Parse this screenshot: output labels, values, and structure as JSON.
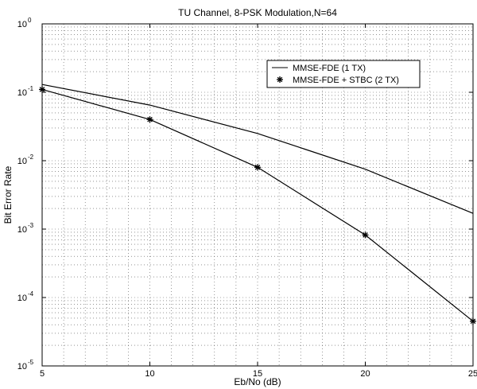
{
  "chart_data": {
    "type": "line",
    "title": "TU Channel, 8-PSK Modulation,N=64",
    "xlabel": "Eb/No (dB)",
    "ylabel": "Bit Error Rate",
    "xlim": [
      5,
      25
    ],
    "ylim": [
      1e-05,
      1
    ],
    "yscale": "log",
    "grid": true,
    "legend_position": "top-right",
    "x_ticks": [
      "5",
      "10",
      "15",
      "20",
      "25"
    ],
    "y_ticks": [
      {
        "base": "10",
        "exp": "0",
        "value": 1
      },
      {
        "base": "10",
        "exp": "-1",
        "value": 0.1
      },
      {
        "base": "10",
        "exp": "-2",
        "value": 0.01
      },
      {
        "base": "10",
        "exp": "-3",
        "value": 0.001
      },
      {
        "base": "10",
        "exp": "-4",
        "value": 0.0001
      },
      {
        "base": "10",
        "exp": "-5",
        "value": 1e-05
      }
    ],
    "series": [
      {
        "name": "MMSE-FDE (1 TX)",
        "style": "line",
        "color": "#000000",
        "x": [
          5,
          10,
          15,
          20,
          25
        ],
        "y": [
          0.13,
          0.065,
          0.025,
          0.0075,
          0.0017
        ]
      },
      {
        "name": "MMSE-FDE + STBC (2 TX)",
        "style": "line-star",
        "color": "#000000",
        "x": [
          5,
          10,
          15,
          20,
          25
        ],
        "y": [
          0.11,
          0.04,
          0.008,
          0.00082,
          4.5e-05
        ]
      }
    ]
  }
}
